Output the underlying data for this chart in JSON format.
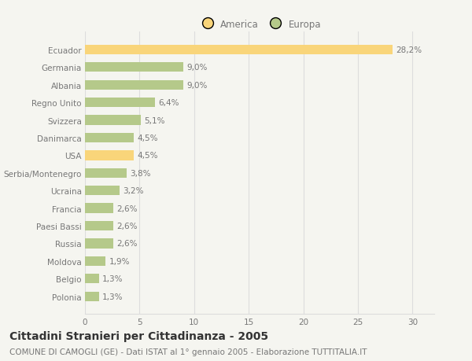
{
  "countries": [
    "Polonia",
    "Belgio",
    "Moldova",
    "Russia",
    "Paesi Bassi",
    "Francia",
    "Ucraina",
    "Serbia/Montenegro",
    "USA",
    "Danimarca",
    "Svizzera",
    "Regno Unito",
    "Albania",
    "Germania",
    "Ecuador"
  ],
  "values": [
    1.3,
    1.3,
    1.9,
    2.6,
    2.6,
    2.6,
    3.2,
    3.8,
    4.5,
    4.5,
    5.1,
    6.4,
    9.0,
    9.0,
    28.2
  ],
  "labels": [
    "1,3%",
    "1,3%",
    "1,9%",
    "2,6%",
    "2,6%",
    "2,6%",
    "3,2%",
    "3,8%",
    "4,5%",
    "4,5%",
    "5,1%",
    "6,4%",
    "9,0%",
    "9,0%",
    "28,2%"
  ],
  "colors": [
    "#b5c98a",
    "#b5c98a",
    "#b5c98a",
    "#b5c98a",
    "#b5c98a",
    "#b5c98a",
    "#b5c98a",
    "#b5c98a",
    "#f9d57a",
    "#b5c98a",
    "#b5c98a",
    "#b5c98a",
    "#b5c98a",
    "#b5c98a",
    "#f9d57a"
  ],
  "america_color": "#f9d57a",
  "europa_color": "#b5c98a",
  "background_color": "#f5f5f0",
  "title": "Cittadini Stranieri per Cittadinanza - 2005",
  "subtitle": "COMUNE DI CAMOGLI (GE) - Dati ISTAT al 1° gennaio 2005 - Elaborazione TUTTITALIA.IT",
  "xlim": [
    0,
    32
  ],
  "xticks": [
    0,
    5,
    10,
    15,
    20,
    25,
    30
  ],
  "grid_color": "#dddddd",
  "bar_height": 0.55,
  "text_fontsize": 7.5,
  "title_fontsize": 10,
  "subtitle_fontsize": 7.5,
  "legend_fontsize": 8.5,
  "tick_fontsize": 7.5
}
